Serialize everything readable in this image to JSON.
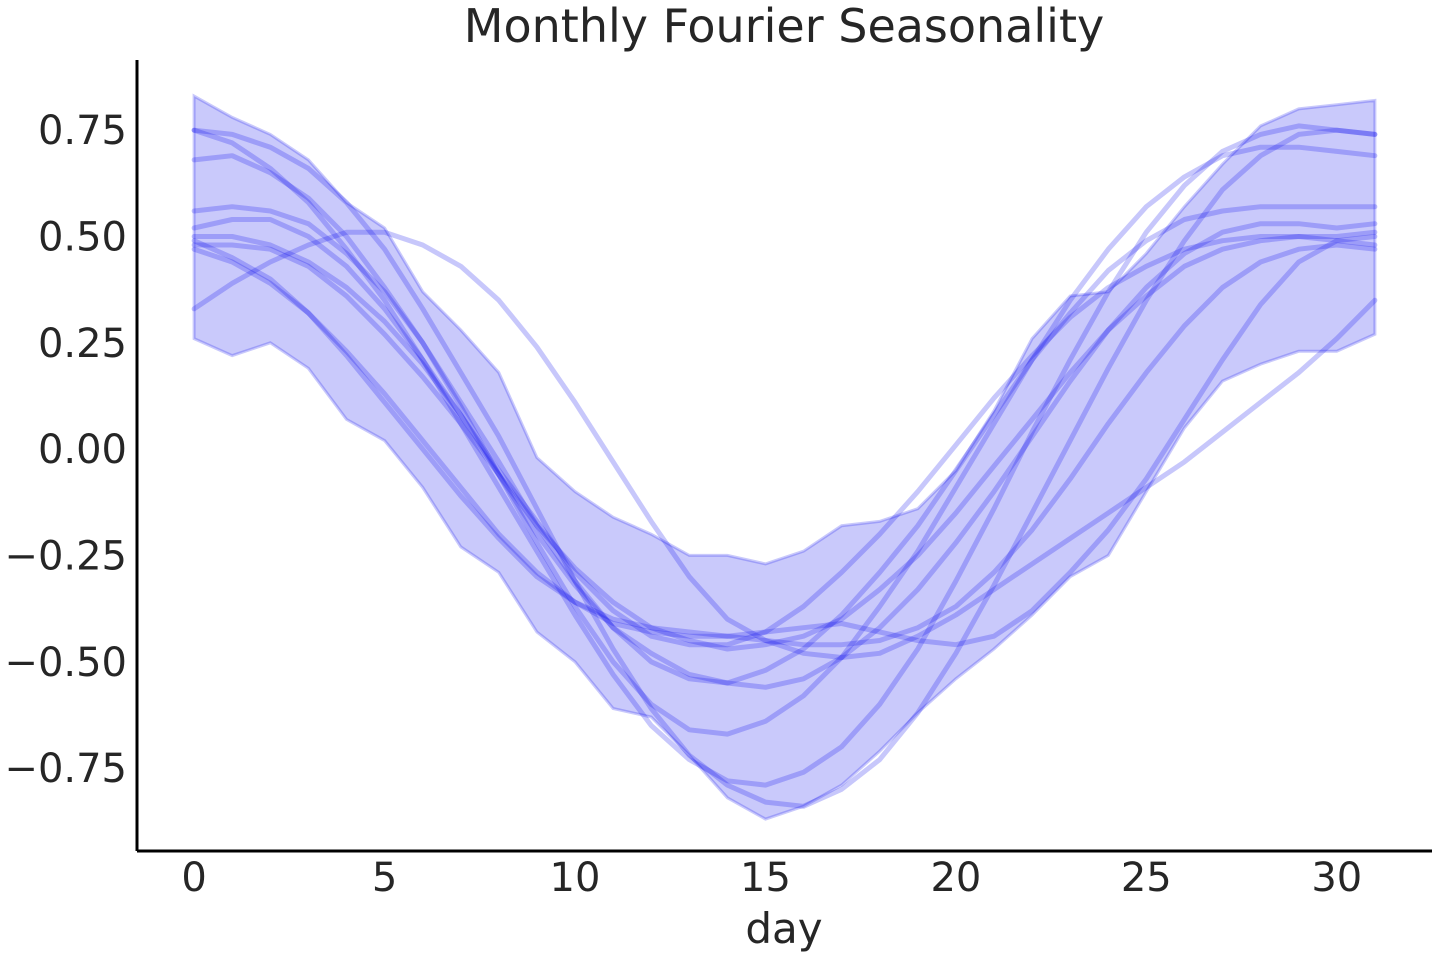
{
  "chart_data": {
    "type": "line",
    "title": "Monthly Fourier Seasonality",
    "xlabel": "day",
    "ylabel": "",
    "xlim": [
      -1.5,
      32.5
    ],
    "ylim": [
      -0.945,
      0.915
    ],
    "grid": false,
    "legend": "none",
    "x_ticks": [
      0,
      5,
      10,
      15,
      20,
      25,
      30
    ],
    "x_tick_labels": [
      "0",
      "5",
      "10",
      "15",
      "20",
      "25",
      "30"
    ],
    "y_ticks": [
      0.75,
      0.5,
      0.25,
      0.0,
      -0.25,
      -0.5,
      -0.75
    ],
    "y_tick_labels": [
      "0.75",
      "0.50",
      "0.25",
      "0.00",
      "−0.25",
      "−0.50",
      "−0.75"
    ],
    "colors": {
      "series": "#0000ee",
      "text": "#262626",
      "axis": "#000000"
    },
    "band": {
      "x": [
        0,
        1,
        2,
        3,
        4,
        5,
        6,
        7,
        8,
        9,
        10,
        11,
        12,
        13,
        14,
        15,
        16,
        17,
        18,
        19,
        20,
        21,
        22,
        23,
        24,
        25,
        26,
        27,
        28,
        29,
        30,
        31
      ],
      "upper": [
        0.83,
        0.78,
        0.74,
        0.68,
        0.58,
        0.52,
        0.37,
        0.28,
        0.18,
        -0.02,
        -0.1,
        -0.16,
        -0.2,
        -0.25,
        -0.25,
        -0.27,
        -0.24,
        -0.18,
        -0.17,
        -0.14,
        -0.05,
        0.09,
        0.26,
        0.36,
        0.37,
        0.46,
        0.57,
        0.67,
        0.76,
        0.8,
        0.81,
        0.82
      ],
      "lower": [
        0.26,
        0.22,
        0.25,
        0.19,
        0.07,
        0.02,
        -0.09,
        -0.23,
        -0.29,
        -0.43,
        -0.5,
        -0.61,
        -0.63,
        -0.72,
        -0.82,
        -0.87,
        -0.84,
        -0.79,
        -0.71,
        -0.62,
        -0.54,
        -0.47,
        -0.39,
        -0.3,
        -0.25,
        -0.1,
        0.05,
        0.16,
        0.2,
        0.23,
        0.23,
        0.27
      ]
    },
    "x": [
      0,
      1,
      2,
      3,
      4,
      5,
      6,
      7,
      8,
      9,
      10,
      11,
      12,
      13,
      14,
      15,
      16,
      17,
      18,
      19,
      20,
      21,
      22,
      23,
      24,
      25,
      26,
      27,
      28,
      29,
      30,
      31
    ],
    "series": [
      {
        "values": [
          0.75,
          0.74,
          0.71,
          0.66,
          0.58,
          0.47,
          0.33,
          0.18,
          0.03,
          -0.14,
          -0.31,
          -0.47,
          -0.61,
          -0.72,
          -0.79,
          -0.83,
          -0.84,
          -0.8,
          -0.73,
          -0.62,
          -0.48,
          -0.32,
          -0.15,
          0.02,
          0.19,
          0.35,
          0.49,
          0.61,
          0.69,
          0.74,
          0.75,
          0.74
        ]
      },
      {
        "values": [
          0.75,
          0.72,
          0.66,
          0.58,
          0.47,
          0.35,
          0.21,
          0.06,
          -0.09,
          -0.24,
          -0.39,
          -0.53,
          -0.65,
          -0.73,
          -0.78,
          -0.79,
          -0.76,
          -0.7,
          -0.6,
          -0.47,
          -0.31,
          -0.14,
          0.04,
          0.21,
          0.37,
          0.51,
          0.62,
          0.7,
          0.74,
          0.76,
          0.75,
          0.74
        ]
      },
      {
        "values": [
          0.68,
          0.69,
          0.65,
          0.59,
          0.5,
          0.38,
          0.25,
          0.1,
          -0.06,
          -0.22,
          -0.37,
          -0.5,
          -0.6,
          -0.66,
          -0.67,
          -0.64,
          -0.58,
          -0.49,
          -0.37,
          -0.24,
          -0.09,
          0.06,
          0.21,
          0.35,
          0.47,
          0.57,
          0.64,
          0.69,
          0.71,
          0.71,
          0.7,
          0.69
        ]
      },
      {
        "values": [
          0.56,
          0.57,
          0.56,
          0.53,
          0.46,
          0.37,
          0.25,
          0.11,
          -0.03,
          -0.18,
          -0.31,
          -0.42,
          -0.5,
          -0.54,
          -0.55,
          -0.52,
          -0.47,
          -0.39,
          -0.29,
          -0.18,
          -0.05,
          0.08,
          0.21,
          0.32,
          0.42,
          0.49,
          0.54,
          0.56,
          0.57,
          0.57,
          0.57,
          0.57
        ]
      },
      {
        "values": [
          0.52,
          0.54,
          0.54,
          0.5,
          0.43,
          0.33,
          0.21,
          0.08,
          -0.06,
          -0.2,
          -0.32,
          -0.42,
          -0.48,
          -0.53,
          -0.55,
          -0.56,
          -0.54,
          -0.49,
          -0.42,
          -0.33,
          -0.22,
          -0.1,
          0.03,
          0.16,
          0.28,
          0.38,
          0.46,
          0.51,
          0.53,
          0.53,
          0.52,
          0.53
        ]
      },
      {
        "values": [
          0.5,
          0.5,
          0.48,
          0.44,
          0.38,
          0.3,
          0.2,
          0.08,
          -0.05,
          -0.17,
          -0.29,
          -0.38,
          -0.44,
          -0.46,
          -0.46,
          -0.43,
          -0.37,
          -0.29,
          -0.2,
          -0.1,
          0.01,
          0.12,
          0.22,
          0.31,
          0.38,
          0.43,
          0.47,
          0.49,
          0.5,
          0.5,
          0.5,
          0.51
        ]
      },
      {
        "values": [
          0.48,
          0.48,
          0.47,
          0.43,
          0.36,
          0.27,
          0.17,
          0.06,
          -0.06,
          -0.18,
          -0.28,
          -0.36,
          -0.42,
          -0.45,
          -0.47,
          -0.46,
          -0.44,
          -0.4,
          -0.33,
          -0.25,
          -0.15,
          -0.04,
          0.07,
          0.18,
          0.28,
          0.36,
          0.43,
          0.47,
          0.49,
          0.5,
          0.49,
          0.48
        ]
      },
      {
        "values": [
          0.49,
          0.45,
          0.4,
          0.32,
          0.22,
          0.11,
          0.0,
          -0.11,
          -0.21,
          -0.3,
          -0.36,
          -0.4,
          -0.42,
          -0.43,
          -0.44,
          -0.45,
          -0.46,
          -0.46,
          -0.45,
          -0.42,
          -0.37,
          -0.29,
          -0.19,
          -0.07,
          0.06,
          0.18,
          0.29,
          0.38,
          0.44,
          0.47,
          0.48,
          0.47
        ]
      },
      {
        "values": [
          0.47,
          0.44,
          0.39,
          0.32,
          0.23,
          0.13,
          0.02,
          -0.09,
          -0.2,
          -0.29,
          -0.36,
          -0.41,
          -0.43,
          -0.44,
          -0.44,
          -0.43,
          -0.42,
          -0.41,
          -0.43,
          -0.45,
          -0.46,
          -0.44,
          -0.38,
          -0.29,
          -0.19,
          -0.07,
          0.07,
          0.21,
          0.34,
          0.44,
          0.49,
          0.5
        ]
      },
      {
        "values": [
          0.33,
          0.39,
          0.44,
          0.48,
          0.51,
          0.51,
          0.48,
          0.43,
          0.35,
          0.24,
          0.11,
          -0.03,
          -0.17,
          -0.3,
          -0.4,
          -0.45,
          -0.48,
          -0.49,
          -0.48,
          -0.44,
          -0.39,
          -0.33,
          -0.27,
          -0.21,
          -0.15,
          -0.09,
          -0.03,
          0.04,
          0.11,
          0.18,
          0.26,
          0.35
        ]
      }
    ]
  }
}
